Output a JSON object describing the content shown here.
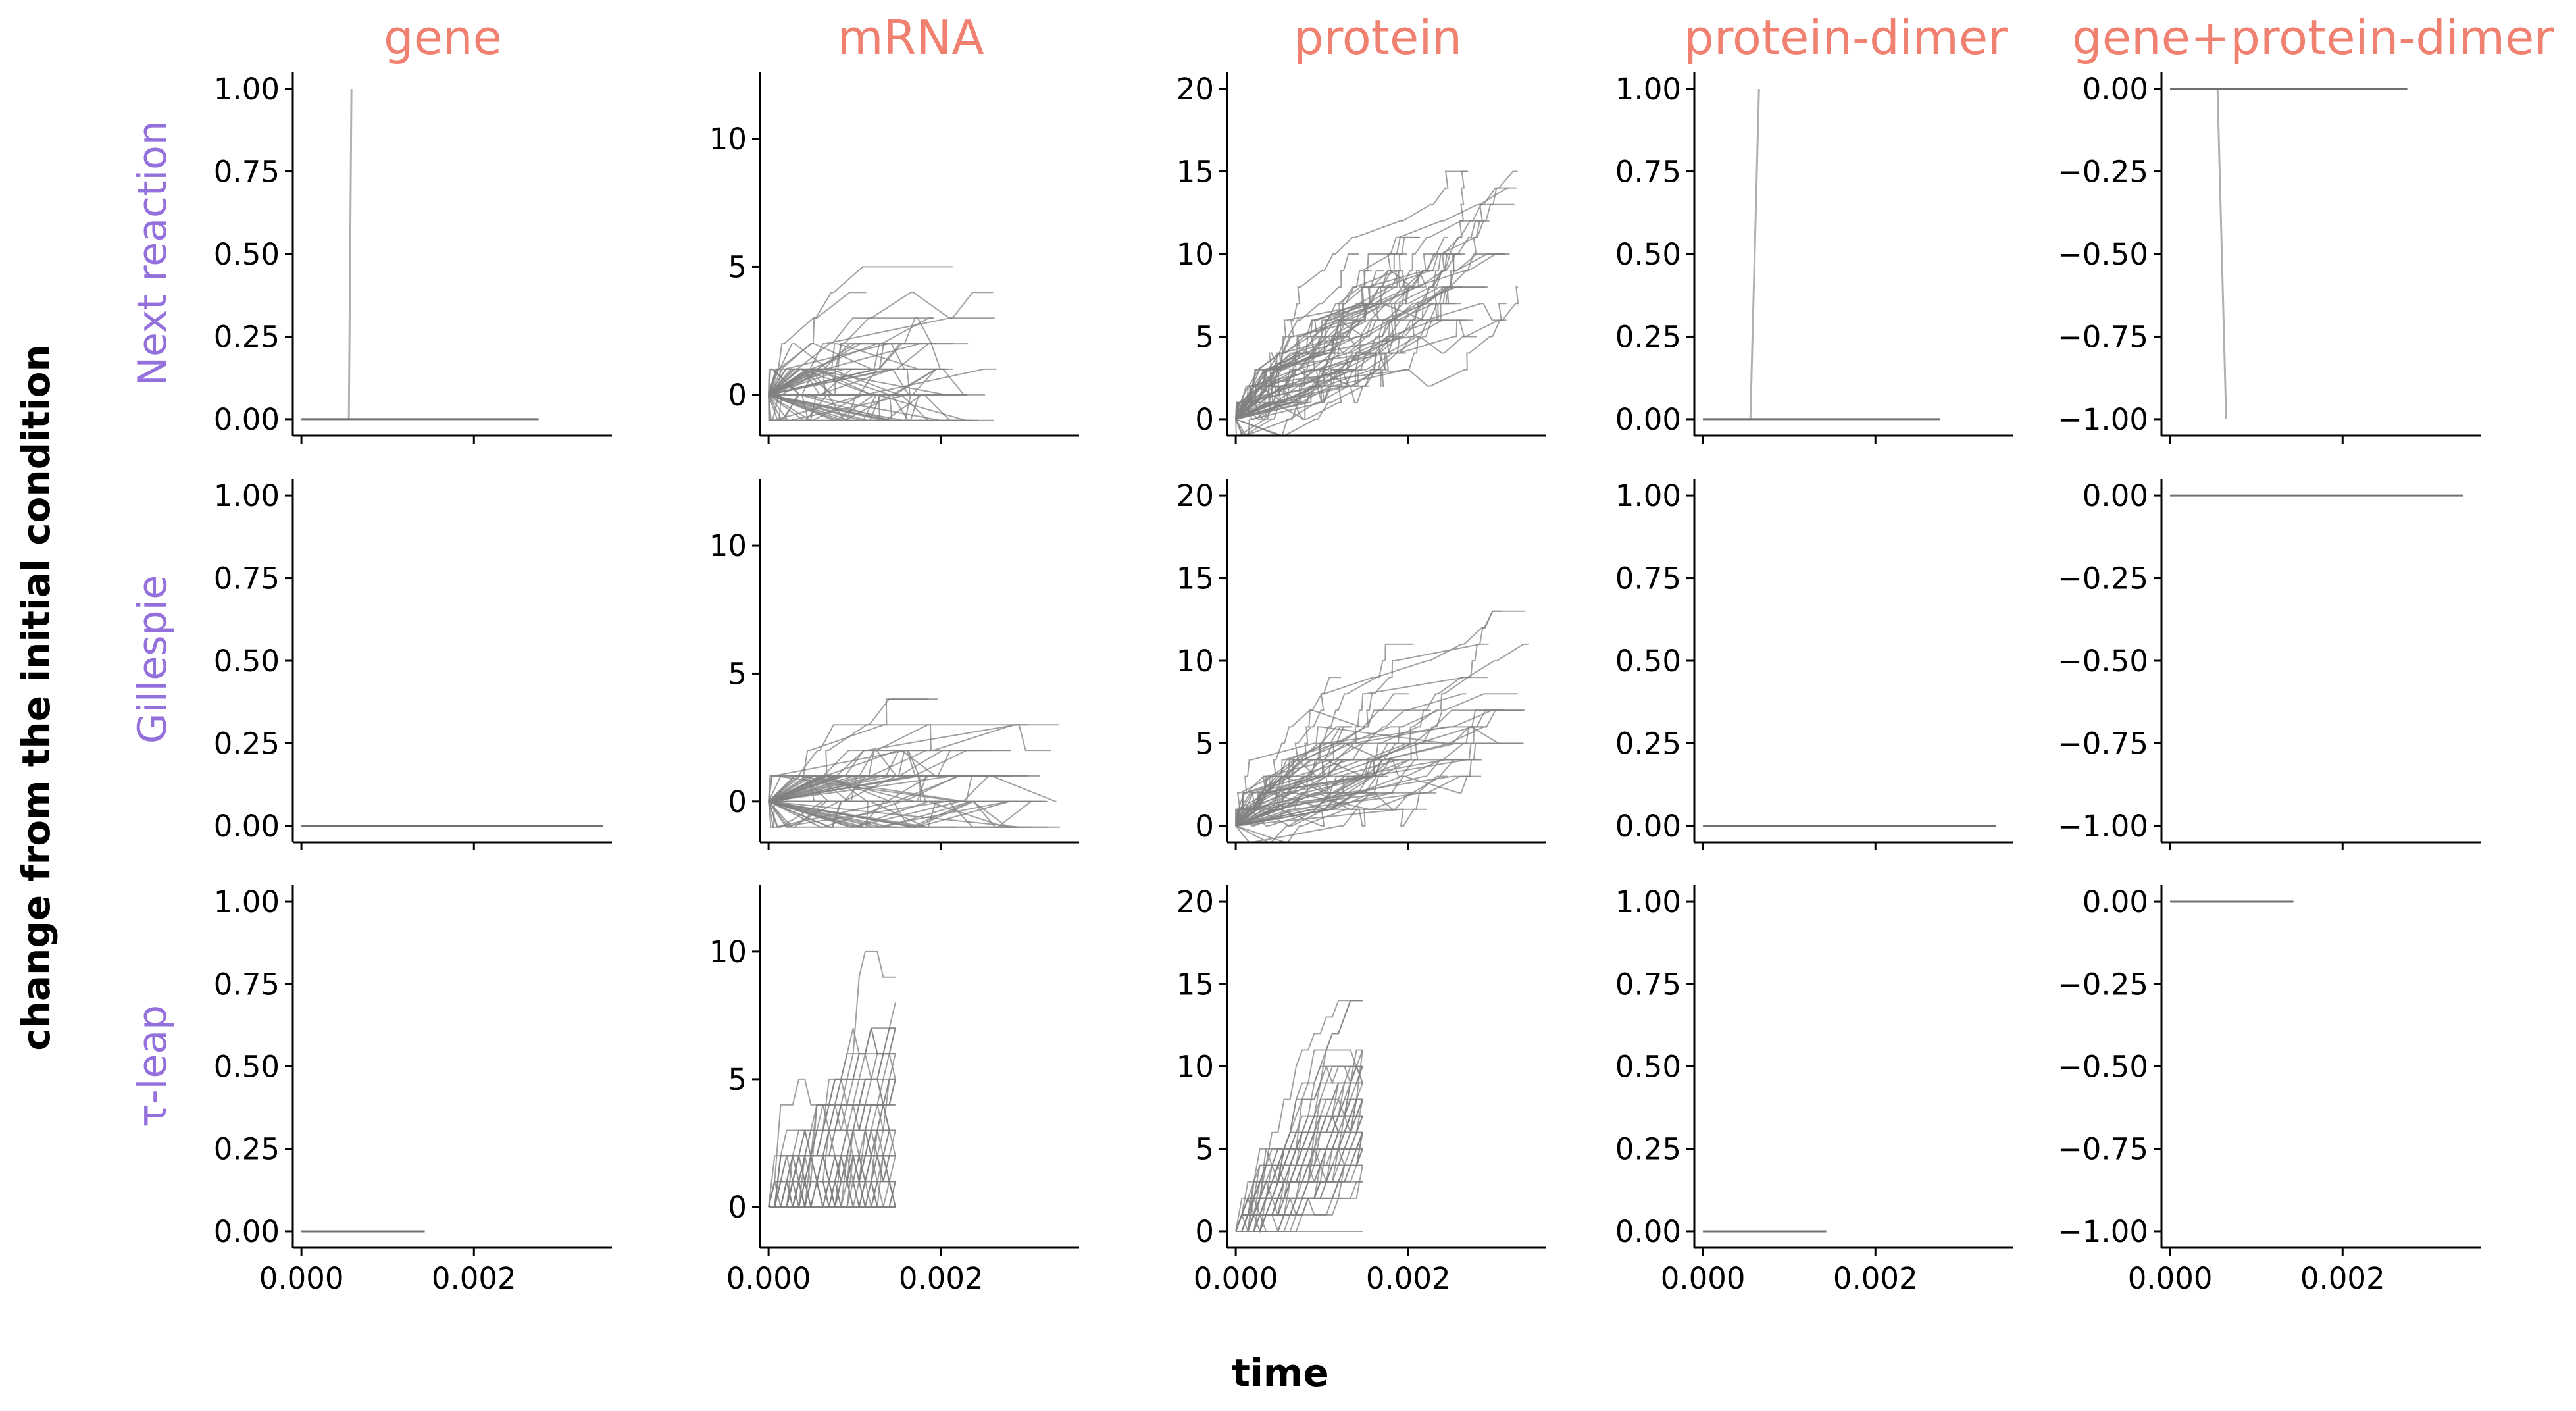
{
  "chart_data": {
    "type": "line",
    "xlabel": "time",
    "ylabel": "change from the initial condition",
    "columns": [
      "gene",
      "mRNA",
      "protein",
      "protein-dimer",
      "gene+protein-dimer"
    ],
    "rows": [
      "Next reaction",
      "Gillespie",
      "τ-leap"
    ],
    "x_ticks": [
      "0.000",
      "0.002"
    ],
    "x_range": [
      -0.0001,
      0.0036
    ],
    "column_y_ticks": [
      [
        "0.00",
        "0.25",
        "0.50",
        "0.75",
        "1.00"
      ],
      [
        "0",
        "5",
        "10"
      ],
      [
        "0",
        "5",
        "10",
        "15",
        "20"
      ],
      [
        "0.00",
        "0.25",
        "0.50",
        "0.75",
        "1.00"
      ],
      [
        "−1.00",
        "−0.75",
        "−0.50",
        "−0.25",
        "0.00"
      ]
    ],
    "column_y_range": [
      [
        -0.05,
        1.05
      ],
      [
        -1.6,
        12.6
      ],
      [
        -1.0,
        21.0
      ],
      [
        -0.05,
        1.05
      ],
      [
        -1.05,
        0.05
      ]
    ],
    "series_end_time": [
      [
        0.00275,
        0.00265,
        0.00335,
        0.00275,
        0.00275
      ],
      [
        0.0035,
        0.0034,
        0.0034,
        0.0034,
        0.0034
      ],
      [
        0.00143,
        0.00143,
        0.00143,
        0.00143,
        0.00143
      ]
    ],
    "jump_events": [
      {
        "row": 0,
        "col": 0,
        "t_from": 0.00055,
        "t_to": 0.00058,
        "value": 1.0
      },
      {
        "row": 0,
        "col": 3,
        "t_from": 0.00055,
        "t_to": 0.00065,
        "value": 1.0
      },
      {
        "row": 0,
        "col": 4,
        "t_from": 0.00055,
        "t_to": 0.00065,
        "value": -1.0
      }
    ],
    "traces_per_panel": 60,
    "line_color": "#808080",
    "col_title_color": "#f08070",
    "row_title_color": "#9370db",
    "grid": false,
    "legend": "none"
  }
}
